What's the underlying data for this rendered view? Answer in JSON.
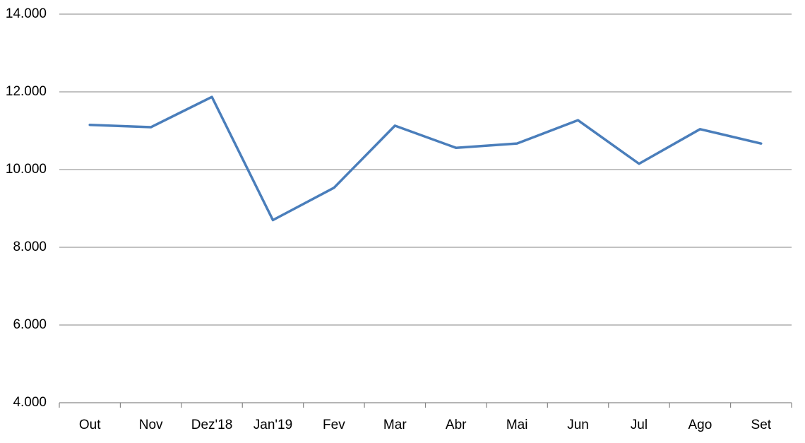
{
  "chart_data": {
    "type": "line",
    "categories": [
      "Out",
      "Nov",
      "Dez'18",
      "Jan'19",
      "Fev",
      "Mar",
      "Abr",
      "Mai",
      "Jun",
      "Jul",
      "Ago",
      "Set"
    ],
    "series": [
      {
        "color": "#4a7ebb",
        "values": [
          11150,
          11090,
          11870,
          8700,
          9530,
          11130,
          10560,
          10670,
          11270,
          10150,
          11040,
          10670
        ]
      }
    ],
    "ylim": [
      4000,
      14000
    ],
    "yticks": [
      {
        "value": 4000,
        "label": "4.000"
      },
      {
        "value": 6000,
        "label": "6.000"
      },
      {
        "value": 8000,
        "label": "8.000"
      },
      {
        "value": 10000,
        "label": "10.000"
      },
      {
        "value": 12000,
        "label": "12.000"
      },
      {
        "value": 14000,
        "label": "14.000"
      }
    ],
    "grid": true
  }
}
